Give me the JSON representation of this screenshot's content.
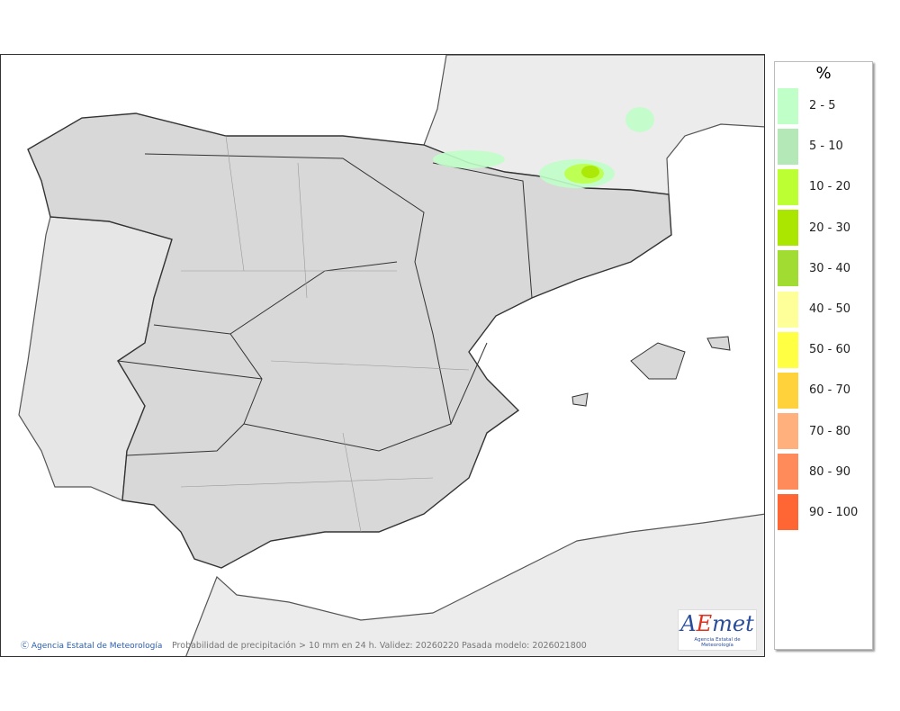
{
  "map": {
    "credit": "Agencia Estatal de Meteorología",
    "caption": "Probabilidad de precipitación > 10 mm en 24 h. Validez: 20260220 Pasada modelo: 2026021800",
    "logo_text": "AEmet",
    "logo_subtitle": "Agencia Estatal de Meteorología",
    "icons": [
      "copyright-icon"
    ]
  },
  "legend": {
    "title": "%",
    "items": [
      {
        "label": "2 - 5",
        "color": "#c0ffc8"
      },
      {
        "label": "5 - 10",
        "color": "#b4e8b6"
      },
      {
        "label": "10 - 20",
        "color": "#bcff33"
      },
      {
        "label": "20 - 30",
        "color": "#aae600"
      },
      {
        "label": "30 - 40",
        "color": "#a0dc32"
      },
      {
        "label": "40 - 50",
        "color": "#ffff9a"
      },
      {
        "label": "50 - 60",
        "color": "#ffff44"
      },
      {
        "label": "60 - 70",
        "color": "#ffd23c"
      },
      {
        "label": "70 - 80",
        "color": "#ffb07c"
      },
      {
        "label": "80 - 90",
        "color": "#ff8a5a"
      },
      {
        "label": "90 - 100",
        "color": "#ff6633"
      }
    ]
  }
}
